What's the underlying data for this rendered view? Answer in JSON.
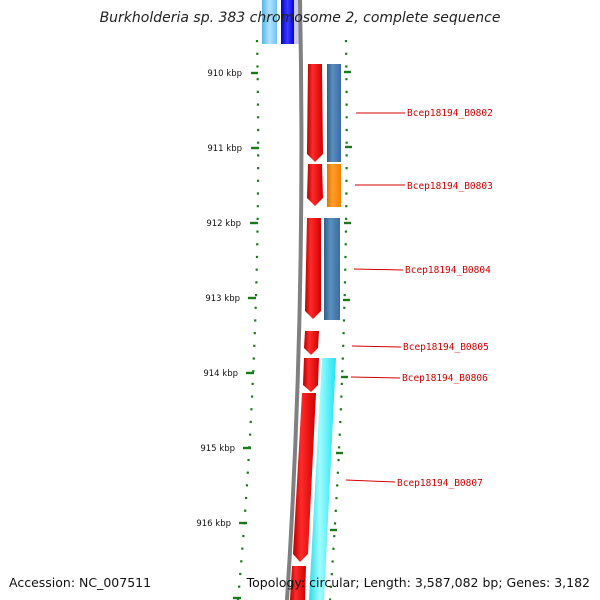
{
  "title": "Burkholderia sp. 383 chromosome 2, complete sequence",
  "accession": "Accession: NC_007511",
  "topology": "Topology: circular; Length: 3,587,082 bp; Genes: 3,182",
  "ticks": [
    {
      "label": "910 kbp"
    },
    {
      "label": "911 kbp"
    },
    {
      "label": "912 kbp"
    },
    {
      "label": "913 kbp"
    },
    {
      "label": "914 kbp"
    },
    {
      "label": "915 kbp"
    },
    {
      "label": "916 kbp"
    }
  ],
  "genes": [
    {
      "label": "Bcep18194_B0802"
    },
    {
      "label": "Bcep18194_B0803"
    },
    {
      "label": "Bcep18194_B0804"
    },
    {
      "label": "Bcep18194_B0805"
    },
    {
      "label": "Bcep18194_B0806"
    },
    {
      "label": "Bcep18194_B0807"
    }
  ],
  "colors": {
    "cds_arrow": "#ff0000",
    "label": "#d40000",
    "tick": "#1a7a1a",
    "backbone": "#808080",
    "feature_steelblue": "#4682b4",
    "feature_orange": "#ff8c00",
    "feature_cyan": "#00ffff",
    "feature_blue": "#0000ff",
    "feature_lightblue": "#87cefa"
  }
}
